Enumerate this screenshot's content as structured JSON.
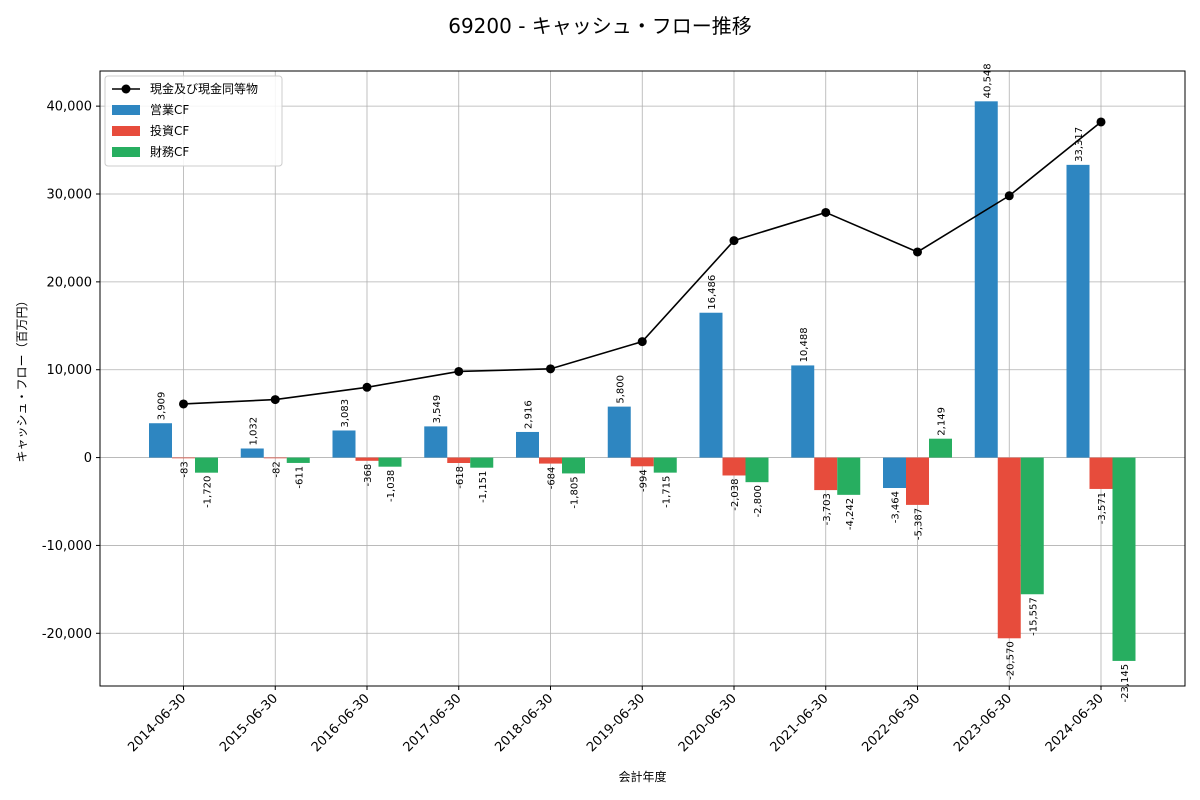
{
  "chart_data": {
    "type": "bar",
    "title": "69200 - キャッシュ・フロー推移",
    "xlabel": "会計年度",
    "ylabel": "キャッシュ・フロー（百万円）",
    "categories": [
      "2014-06-30",
      "2015-06-30",
      "2016-06-30",
      "2017-06-30",
      "2018-06-30",
      "2019-06-30",
      "2020-06-30",
      "2021-06-30",
      "2022-06-30",
      "2023-06-30",
      "2024-06-30"
    ],
    "series": [
      {
        "name": "営業CF",
        "kind": "bar",
        "color": "#2e86c1",
        "values": [
          3909,
          1032,
          3083,
          3549,
          2916,
          5800,
          16486,
          10488,
          -3464,
          40548,
          33317
        ]
      },
      {
        "name": "投資CF",
        "kind": "bar",
        "color": "#e74c3c",
        "values": [
          -83,
          -82,
          -368,
          -618,
          -684,
          -994,
          -2038,
          -3703,
          -5387,
          -20570,
          -3571
        ]
      },
      {
        "name": "財務CF",
        "kind": "bar",
        "color": "#27ae60",
        "values": [
          -1720,
          -611,
          -1038,
          -1151,
          -1805,
          -1715,
          -2800,
          -4242,
          2149,
          -15557,
          -23145
        ]
      },
      {
        "name": "現金及び現金同等物",
        "kind": "line",
        "color": "#000000",
        "values": [
          6100,
          6600,
          8000,
          9800,
          10100,
          13200,
          24700,
          27900,
          23400,
          29800,
          38200
        ]
      }
    ],
    "ylim": [
      -26000,
      44000
    ],
    "yticks": [
      -20000,
      -10000,
      0,
      10000,
      20000,
      30000,
      40000
    ],
    "grid": true,
    "legend_position": "top-left"
  }
}
